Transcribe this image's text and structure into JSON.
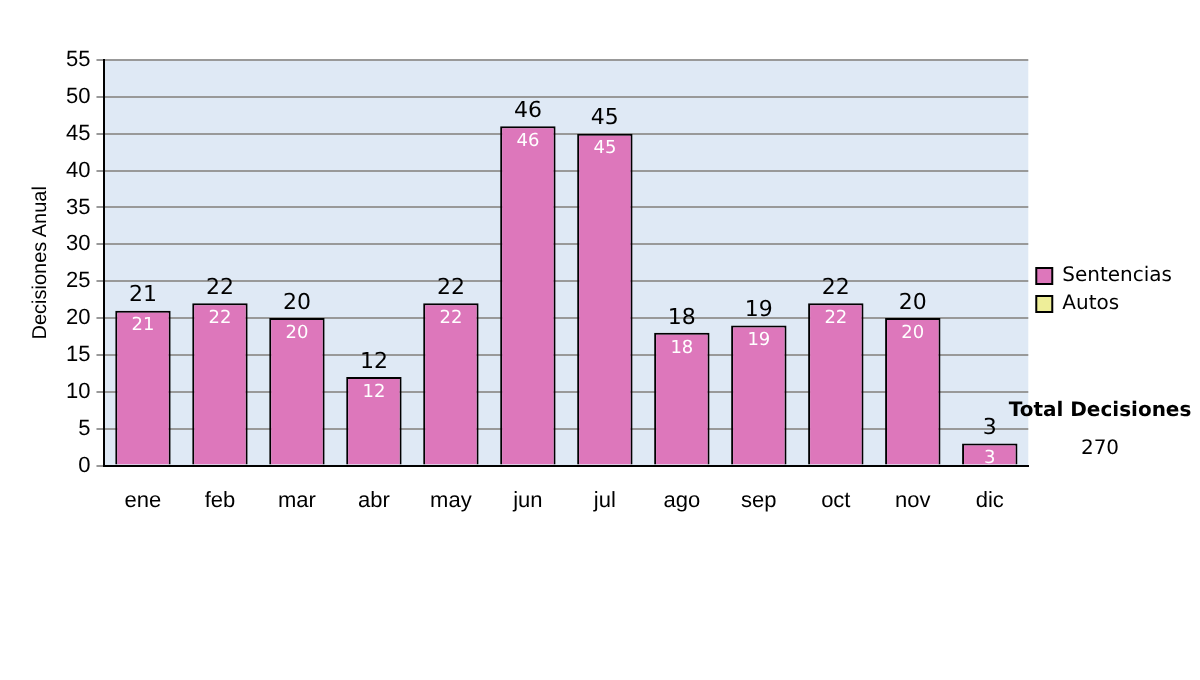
{
  "chart_data": {
    "type": "bar",
    "stacked": true,
    "ylabel": "Decisiones Anual",
    "categories": [
      "ene",
      "feb",
      "mar",
      "abr",
      "may",
      "jun",
      "jul",
      "ago",
      "sep",
      "oct",
      "nov",
      "dic"
    ],
    "series": [
      {
        "name": "Sentencias",
        "color": "#dd77bb",
        "values": [
          21,
          22,
          20,
          12,
          22,
          46,
          45,
          18,
          19,
          22,
          20,
          3
        ],
        "value_labels": [
          "21",
          "22",
          "20",
          "12",
          "22",
          "46",
          "45",
          "18",
          "19",
          "22",
          "20",
          "3"
        ]
      },
      {
        "name": "Autos",
        "color": "#eeee99",
        "values": [
          0,
          0,
          0,
          0,
          0,
          0,
          0,
          0,
          0,
          0,
          0,
          0
        ]
      }
    ],
    "totals": [
      "21",
      "22",
      "20",
      "12",
      "22",
      "46",
      "45",
      "18",
      "19",
      "22",
      "20",
      "3"
    ],
    "ylim": [
      0,
      55
    ],
    "yticks": [
      0,
      5,
      10,
      15,
      20,
      25,
      30,
      35,
      40,
      45,
      50,
      55
    ],
    "grid": "y",
    "legend": "right",
    "annotations": [
      "Total Decisiones",
      "270"
    ]
  }
}
